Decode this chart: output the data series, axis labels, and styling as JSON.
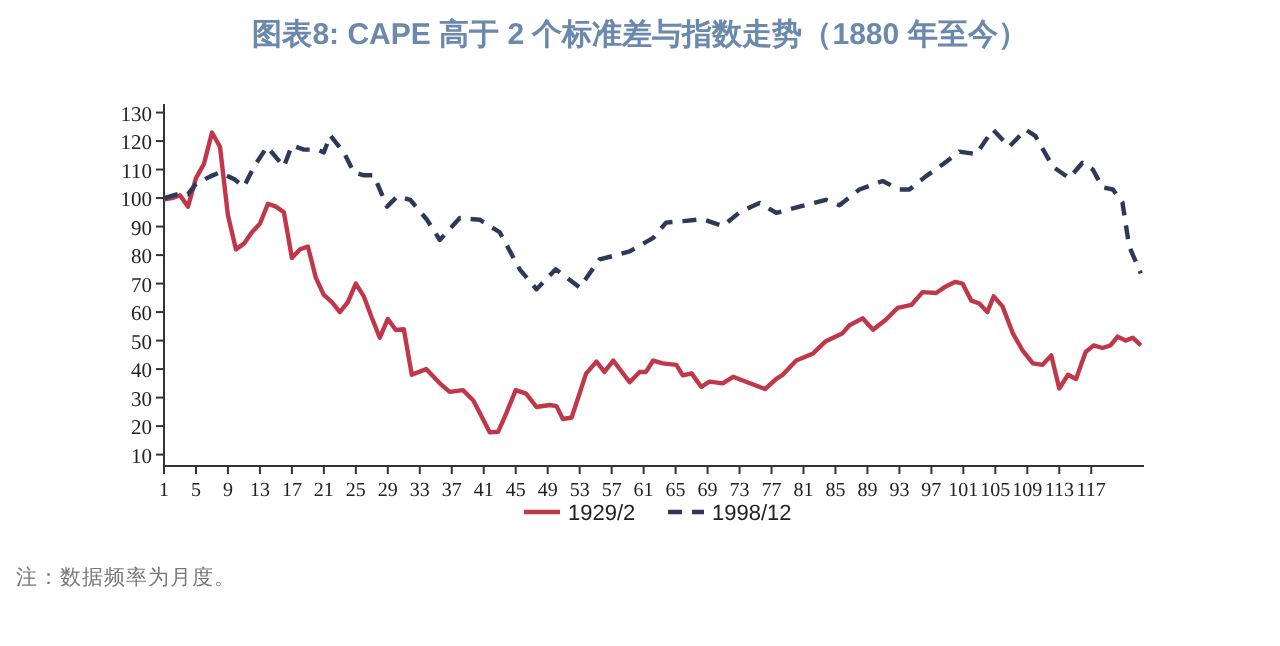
{
  "chart_data": {
    "type": "line",
    "title": "图表8:  CAPE 高于 2 个标准差与指数走势（1880 年至今）",
    "annotations": [
      "注：数据频率为月度。"
    ],
    "xlim": [
      1,
      123.6
    ],
    "xticks": [
      1,
      5,
      9,
      13,
      17,
      21,
      25,
      29,
      33,
      37,
      41,
      45,
      49,
      53,
      57,
      61,
      65,
      69,
      73,
      77,
      81,
      85,
      89,
      93,
      97,
      101,
      105,
      109,
      113,
      117
    ],
    "ylim": [
      6,
      133
    ],
    "yticks": [
      10,
      20,
      30,
      40,
      50,
      60,
      70,
      80,
      90,
      100,
      110,
      120,
      130
    ],
    "grid": false,
    "legend": "bottom",
    "marker": "none",
    "series": [
      {
        "name": "1929/2",
        "color": "#c0374a",
        "line_style": "solid",
        "x": [
          1,
          2,
          3,
          4,
          5,
          6,
          7,
          8,
          9,
          10,
          11,
          12,
          13,
          14,
          15,
          16,
          17,
          18,
          19,
          20,
          21,
          22,
          23,
          24,
          25,
          26,
          27,
          28,
          29,
          30,
          31,
          32,
          33.8,
          35.5,
          36.75,
          38.4,
          39.7,
          41.75,
          42.8,
          43.8,
          45,
          46.3,
          47.6,
          49.25,
          50.1,
          50.9,
          52,
          53.8,
          55.1,
          56.1,
          57.2,
          59.25,
          60.5,
          61.3,
          62.2,
          63.4,
          65.1,
          65.9,
          67,
          68.2,
          69.25,
          70.9,
          72.2,
          73.4,
          76.2,
          77.6,
          78.4,
          80.1,
          82.2,
          83.8,
          85.9,
          86.75,
          88.4,
          89.7,
          91.3,
          92.8,
          94.5,
          95.9,
          97.6,
          98.8,
          100,
          100.9,
          102,
          103,
          104,
          104.8,
          105.9,
          107.2,
          108.4,
          109.7,
          110.9,
          112,
          113,
          114.1,
          115.1,
          116.3,
          117.3,
          118.4,
          119.4,
          120.3,
          121.3,
          122.2,
          123.2
        ],
        "values": [
          99.6,
          100,
          101,
          97,
          107,
          112,
          123,
          118,
          94,
          82,
          84,
          88,
          91,
          98,
          97,
          95,
          79,
          82,
          83,
          72,
          66,
          63.5,
          60,
          63.5,
          70,
          65.5,
          58,
          51,
          57.6,
          53.7,
          54,
          38,
          40,
          35,
          32,
          32.6,
          29,
          17.8,
          18,
          24.4,
          32.6,
          31.4,
          26.7,
          27.4,
          27,
          22.5,
          23,
          38.4,
          42.6,
          39,
          43,
          35.4,
          39,
          39,
          43,
          42,
          41.5,
          37.8,
          38.5,
          33.8,
          35.6,
          35,
          37.3,
          36,
          33,
          36.6,
          38,
          43,
          45.5,
          49.8,
          52.6,
          55.4,
          57.8,
          53.8,
          57.3,
          61.5,
          62.5,
          67,
          66.7,
          69,
          70.6,
          70,
          64,
          63,
          60,
          65.5,
          62,
          52.5,
          46.6,
          42,
          41.5,
          44.8,
          33.2,
          38,
          36.5,
          46,
          48.3,
          47.4,
          48.3,
          51.4,
          50,
          51,
          48.3
        ]
      },
      {
        "name": "1998/12",
        "color": "#2c3a5a",
        "line_style": "dashed",
        "x": [
          1,
          2.6,
          4,
          5,
          6.8,
          8,
          9.75,
          11,
          12.25,
          13.9,
          16,
          17,
          18.5,
          20.2,
          21,
          21.8,
          23.5,
          24.75,
          26,
          27.25,
          28.9,
          30.2,
          31.8,
          33.9,
          35.5,
          38,
          40.5,
          43,
          45.5,
          47.6,
          50,
          53,
          55.5,
          57.2,
          59.25,
          62.2,
          63.8,
          66.3,
          68.4,
          70.9,
          73,
          75.5,
          77.6,
          80.5,
          83.8,
          85.5,
          88,
          90.9,
          93,
          94.25,
          96.3,
          98.4,
          100.5,
          102.6,
          104.7,
          106.75,
          108.8,
          110,
          112.2,
          114.25,
          115.9,
          117.2,
          118.4,
          119.7,
          120.9,
          121.75,
          123.2
        ],
        "values": [
          100,
          101.3,
          101.3,
          105,
          107.6,
          109,
          106.7,
          104,
          111,
          118,
          111,
          118.5,
          117,
          117,
          116,
          122,
          116,
          109,
          108,
          108,
          97,
          100.6,
          99.4,
          92.4,
          85.3,
          93,
          92.4,
          88,
          75,
          68,
          75,
          68.6,
          78.5,
          79.7,
          81.3,
          86,
          91.4,
          92,
          92.6,
          90.2,
          95,
          98.3,
          94.8,
          97,
          99.4,
          97.5,
          103,
          106,
          103,
          103,
          107.6,
          111.8,
          116.3,
          115.4,
          124,
          118,
          124,
          121.8,
          111,
          107,
          112.4,
          110,
          103.8,
          103,
          98.5,
          83,
          73.6
        ]
      }
    ]
  }
}
